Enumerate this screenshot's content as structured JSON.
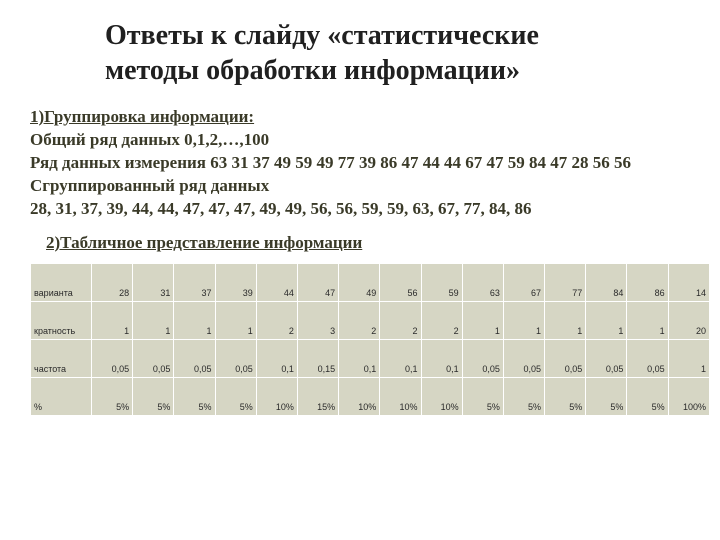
{
  "title_line1": "Ответы к слайду «статистические",
  "title_line2": "методы обработки информации»",
  "section1": {
    "heading": "1)Группировка информации:",
    "line_a": "Общий ряд данных  0,1,2,…,100",
    "line_b": "Ряд данных измерения 63 31 37 49 59 49 77 39 86 47 44 44 67 47 59 84 47 28 56 56",
    "line_c": "Сгруппированный ряд данных",
    "line_d": " 28, 31, 37, 39, 44, 44, 47, 47, 47, 49, 49, 56, 56, 59, 59, 63, 67, 77, 84, 86"
  },
  "section2_heading": "2)Табличное представление информации",
  "table": {
    "type": "table",
    "background_color": "#d6d6c4",
    "border_color": "#ffffff",
    "font_family": "Arial",
    "font_size_pt": 7,
    "row_labels": [
      "варианта",
      "кратность",
      "частота",
      "%"
    ],
    "columns": [
      "28",
      "31",
      "37",
      "39",
      "44",
      "47",
      "49",
      "56",
      "59",
      "63",
      "67",
      "77",
      "84",
      "86",
      "14"
    ],
    "rows": [
      [
        "28",
        "31",
        "37",
        "39",
        "44",
        "47",
        "49",
        "56",
        "59",
        "63",
        "67",
        "77",
        "84",
        "86",
        "14"
      ],
      [
        "1",
        "1",
        "1",
        "1",
        "2",
        "3",
        "2",
        "2",
        "2",
        "1",
        "1",
        "1",
        "1",
        "1",
        "20"
      ],
      [
        "0,05",
        "0,05",
        "0,05",
        "0,05",
        "0,1",
        "0,15",
        "0,1",
        "0,1",
        "0,1",
        "0,05",
        "0,05",
        "0,05",
        "0,05",
        "0,05",
        "1"
      ],
      [
        "5%",
        "5%",
        "5%",
        "5%",
        "10%",
        "15%",
        "10%",
        "10%",
        "10%",
        "5%",
        "5%",
        "5%",
        "5%",
        "5%",
        "100%"
      ]
    ]
  }
}
